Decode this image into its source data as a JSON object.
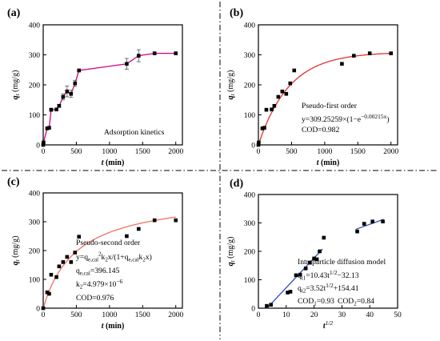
{
  "chart_data": [
    {
      "type": "line",
      "panel_label": "(a)",
      "xlabel": "t (min)",
      "ylabel": "q_t (mg/g)",
      "xlim": [
        0,
        2100
      ],
      "ylim": [
        0,
        400
      ],
      "xticks": [
        "0",
        "500",
        "1000",
        "1500",
        "2000"
      ],
      "yticks": [
        "0",
        "100",
        "200",
        "300",
        "400"
      ],
      "series": [
        {
          "color": "#d6007e",
          "marker": "square",
          "x": [
            0,
            5,
            60,
            90,
            120,
            200,
            240,
            300,
            360,
            420,
            480,
            540,
            1260,
            1440,
            1680,
            2000
          ],
          "y": [
            0,
            8,
            55,
            57,
            117,
            118,
            130,
            160,
            178,
            170,
            205,
            248,
            270,
            297,
            305,
            305
          ],
          "err": [
            0,
            0,
            0,
            0,
            5,
            0,
            5,
            10,
            18,
            12,
            10,
            0,
            18,
            20,
            0,
            0
          ]
        }
      ],
      "annotations": [
        "Adsorption kinetics"
      ]
    },
    {
      "type": "scatter",
      "panel_label": "(b)",
      "xlabel": "t (min)",
      "ylabel": "q_t (mg/g)",
      "xlim": [
        0,
        2100
      ],
      "ylim": [
        0,
        400
      ],
      "xticks": [
        "0",
        "500",
        "1000",
        "1500",
        "2000"
      ],
      "yticks": [
        "0",
        "100",
        "200",
        "300",
        "400"
      ],
      "points": {
        "x": [
          0,
          5,
          60,
          90,
          120,
          200,
          240,
          300,
          360,
          420,
          480,
          540,
          1260,
          1440,
          1680,
          2000
        ],
        "y": [
          0,
          8,
          55,
          57,
          117,
          118,
          130,
          160,
          178,
          170,
          205,
          248,
          270,
          297,
          305,
          305
        ]
      },
      "fit": {
        "model": "pseudo-first-order",
        "qe": 309.25259,
        "k1": 0.00215,
        "color": "#e03030"
      },
      "annotations": [
        "Pseudo-first order",
        "y=309.25259×(1−e",
        "−0.00215x",
        ")",
        "COD=0.982"
      ]
    },
    {
      "type": "scatter",
      "panel_label": "(c)",
      "xlabel": "t (min)",
      "ylabel": "q_t (mg/g)",
      "xlim": [
        0,
        2100
      ],
      "ylim": [
        0,
        400
      ],
      "xticks": [
        "0",
        "500",
        "1000",
        "1500",
        "2000"
      ],
      "yticks": [
        "0",
        "100",
        "200",
        "300",
        "400"
      ],
      "points": {
        "x": [
          0,
          60,
          90,
          120,
          200,
          240,
          300,
          360,
          420,
          480,
          540,
          1260,
          1440,
          1680,
          2000
        ],
        "y": [
          0,
          55,
          50,
          116,
          108,
          145,
          160,
          178,
          160,
          193,
          248,
          250,
          275,
          305,
          305
        ]
      },
      "fit": {
        "model": "pseudo-second-order",
        "qe": 396.145,
        "k2": 4.979e-06,
        "color": "#f07060"
      },
      "annotations": [
        "Pseudo-second order",
        "y=q",
        "e,cal",
        "2",
        "k",
        "2",
        "x/(1+q",
        "e,cal",
        "k",
        "2",
        "x)",
        "q",
        "e,cal",
        "=396.145",
        "k",
        "2",
        "=4.979×10",
        "−6",
        "COD=0.976"
      ]
    },
    {
      "type": "scatter",
      "panel_label": "(d)",
      "xlabel": "t^1/2",
      "ylabel": "q_t (mg/g)",
      "xlim": [
        0,
        50
      ],
      "ylim": [
        0,
        400
      ],
      "xticks": [
        "0",
        "10",
        "20",
        "30",
        "40",
        "50"
      ],
      "yticks": [
        "0",
        "100",
        "200",
        "300",
        "400"
      ],
      "points": {
        "x": [
          3,
          4.5,
          10.5,
          11.5,
          13.5,
          15,
          17,
          18.5,
          20,
          21,
          22,
          23.5,
          35.5,
          38,
          41,
          44.7
        ],
        "y": [
          8,
          12,
          55,
          58,
          116,
          118,
          140,
          160,
          175,
          172,
          200,
          248,
          270,
          297,
          305,
          305
        ]
      },
      "fits": [
        {
          "slope": 10.43,
          "intercept": -32.13,
          "x_range": [
            3,
            23
          ],
          "color": "#3050c0"
        },
        {
          "slope": 3.52,
          "intercept": 154.41,
          "x_range": [
            35,
            45
          ],
          "color": "#3050c0"
        }
      ],
      "annotations": [
        "Intraparticle diffusion model",
        "q",
        "t1",
        "=10.43t",
        "1/2",
        "−32.13",
        "q",
        "t2",
        "=3.52t",
        "1/2",
        "+154.41",
        "COD",
        "1",
        "=0.93",
        "COD",
        "2",
        "=0.84"
      ]
    }
  ]
}
